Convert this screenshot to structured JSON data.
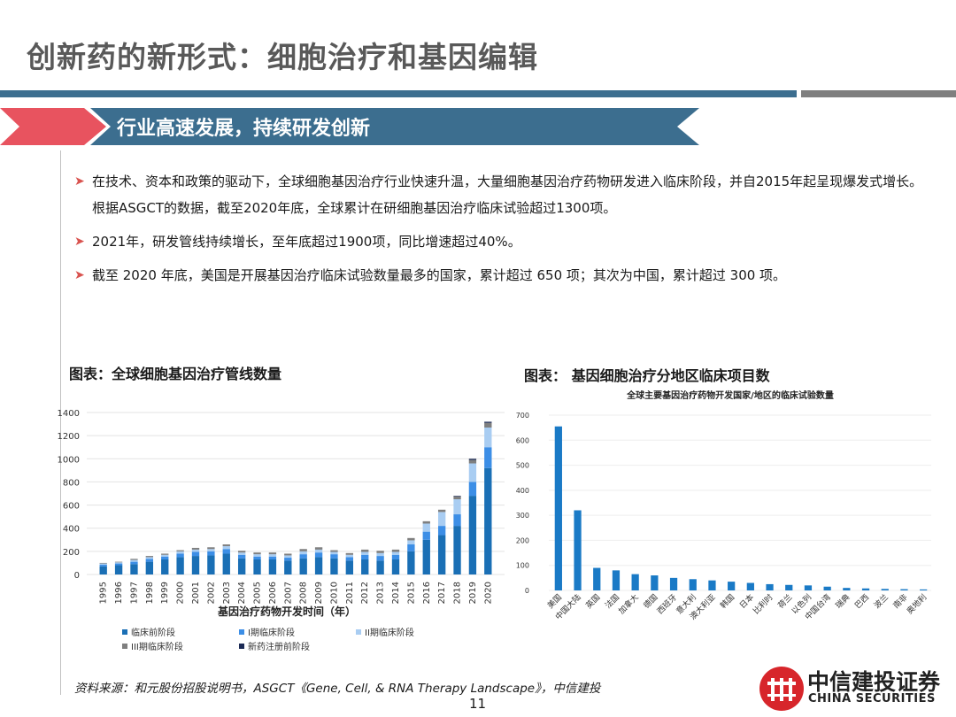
{
  "page": {
    "title": "创新药的新形式：细胞治疗和基因编辑",
    "section_title": "行业高速发展，持续研发创新",
    "bullets": [
      "在技术、资本和政策的驱动下，全球细胞基因治疗行业快速升温，大量细胞基因治疗药物研发进入临床阶段，并自2015年起呈现爆发式增长。根据ASGCT的数据，截至2020年底，全球累计在研细胞基因治疗临床试验超过1300项。",
      "2021年，研发管线持续增长，至年底超过1900项，同比增速超过40%。",
      "截至 2020 年底，美国是开展基因治疗临床试验数量最多的国家，累计超过 650 项；其次为中国，累计超过 300 项。"
    ],
    "source": "资料来源：和元股份招股说明书，ASGCT《Gene, Cell, & RNA Therapy Landscape》，中信建投",
    "page_number": "11",
    "logo_cn": "中信建投证券",
    "logo_en": "CHINA SECURITIES",
    "colors": {
      "accent_blue": "#3c6e8f",
      "accent_red": "#e8535f",
      "series_dark": "#1a6fb5",
      "series_mid": "#3c8ee6",
      "series_light": "#a9cdf2",
      "series_grey": "#7f7f7f",
      "series_navy": "#1b2a55"
    }
  },
  "chart_data": [
    {
      "type": "bar",
      "stacked": true,
      "title": "图表：全球细胞基因治疗管线数量",
      "xlabel": "基因治疗药物开发时间（年）",
      "ylabel": "",
      "ylim": [
        0,
        1400
      ],
      "yticks": [
        0,
        200,
        400,
        600,
        800,
        1000,
        1200,
        1400
      ],
      "grid": true,
      "legend": "bottom",
      "categories": [
        "1995",
        "1996",
        "1997",
        "1998",
        "1999",
        "2000",
        "2001",
        "2002",
        "2003",
        "2004",
        "2005",
        "2006",
        "2007",
        "2008",
        "2009",
        "2010",
        "2011",
        "2012",
        "2013",
        "2014",
        "2015",
        "2016",
        "2017",
        "2018",
        "2019",
        "2020"
      ],
      "series": [
        {
          "name": "临床前阶段",
          "color": "#1a6fb5",
          "values": [
            70,
            80,
            90,
            110,
            130,
            150,
            160,
            165,
            180,
            140,
            130,
            130,
            120,
            140,
            150,
            140,
            120,
            130,
            120,
            130,
            200,
            300,
            340,
            420,
            680,
            920
          ]
        },
        {
          "name": "I期临床阶段",
          "color": "#3c8ee6",
          "values": [
            15,
            15,
            20,
            25,
            25,
            30,
            35,
            35,
            40,
            30,
            25,
            25,
            25,
            35,
            40,
            35,
            30,
            40,
            40,
            40,
            60,
            70,
            80,
            100,
            120,
            180
          ]
        },
        {
          "name": "II期临床阶段",
          "color": "#a9cdf2",
          "values": [
            10,
            10,
            15,
            15,
            15,
            20,
            20,
            20,
            25,
            20,
            20,
            20,
            20,
            25,
            25,
            20,
            20,
            25,
            25,
            25,
            35,
            70,
            120,
            130,
            160,
            170
          ]
        },
        {
          "name": "III期临床阶段",
          "color": "#7f7f7f",
          "values": [
            5,
            5,
            10,
            10,
            10,
            10,
            15,
            15,
            15,
            15,
            15,
            15,
            15,
            20,
            20,
            15,
            15,
            20,
            20,
            20,
            20,
            20,
            20,
            25,
            30,
            40
          ]
        },
        {
          "name": "新药注册前阶段",
          "color": "#1b2a55",
          "values": [
            0,
            0,
            0,
            0,
            0,
            0,
            0,
            0,
            0,
            0,
            0,
            0,
            0,
            0,
            0,
            0,
            0,
            0,
            0,
            0,
            0,
            0,
            0,
            5,
            10,
            10
          ]
        }
      ]
    },
    {
      "type": "bar",
      "title": "图表：  基因细胞治疗分地区临床项目数",
      "subtitle": "全球主要基因治疗药物开发国家/地区的临床试验数量",
      "xlabel": "",
      "ylabel": "",
      "ylim": [
        0,
        700
      ],
      "yticks": [
        0,
        100,
        200,
        300,
        400,
        500,
        600,
        700
      ],
      "grid": true,
      "color": "#1a7ac6",
      "categories": [
        "美国",
        "中国大陆",
        "英国",
        "法国",
        "加拿大",
        "德国",
        "西班牙",
        "意大利",
        "澳大利亚",
        "韩国",
        "日本",
        "比利时",
        "荷兰",
        "以色列",
        "中国台湾",
        "瑞典",
        "巴西",
        "波兰",
        "南非",
        "奥地利"
      ],
      "values": [
        655,
        320,
        90,
        80,
        65,
        60,
        50,
        45,
        40,
        35,
        30,
        25,
        22,
        20,
        15,
        10,
        8,
        6,
        5,
        4
      ]
    }
  ]
}
